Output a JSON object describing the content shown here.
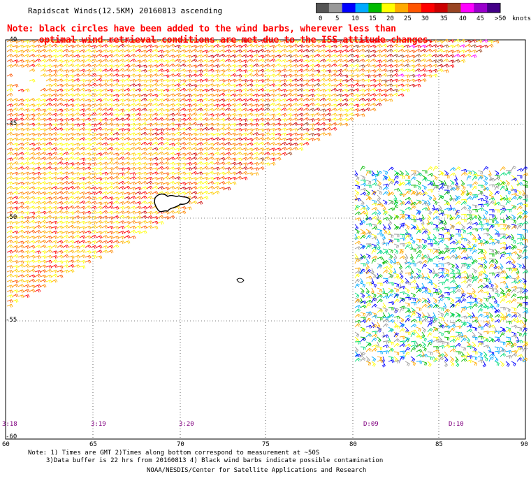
{
  "title": "Rapidscat Winds(12.5KM) 20160813 ascending",
  "note": {
    "line1": "Note: black circles have been added to the wind barbs, wherever less than",
    "line2": "      optimal wind retrieval conditions are met due to the ISS attitude changes."
  },
  "color_scale": {
    "labels": [
      "0",
      "5",
      "10",
      "15",
      "20",
      "25",
      "30",
      "35",
      "40",
      "45",
      ">50"
    ],
    "unit": "knots",
    "colors": [
      "#555555",
      "#999999",
      "#0000ff",
      "#00aaff",
      "#00bb00",
      "#ffff00",
      "#ffaa00",
      "#ff5500",
      "#ff0000",
      "#cc0000",
      "#994422",
      "#ff00ff",
      "#9900cc",
      "#440088"
    ]
  },
  "axes": {
    "lat_labels": [
      "-40",
      "-45",
      "-50",
      "-55",
      "-60"
    ],
    "lon_labels": [
      "60",
      "65",
      "70",
      "75",
      "80",
      "85",
      "90"
    ]
  },
  "time_labels": [
    "3:18",
    "3:19",
    "3:20",
    "D:09",
    "D:10"
  ],
  "footer": {
    "line1": "Note: 1) Times are GMT 2)Times along bottom correspond to measurement at ~50S",
    "line2": "3)Data buffer is 22 hrs from 20160813 4) Black wind barbs indicate possible contamination",
    "line3": "NOAA/NESDIS/Center for Satellite Applications and Research"
  }
}
